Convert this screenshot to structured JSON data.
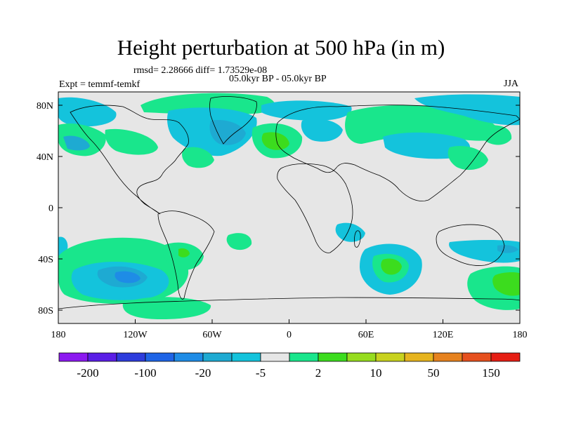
{
  "title": "Height perturbation at 500 hPa (in m)",
  "stats": "rmsd= 2.28666 diff= 1.73529e-08",
  "period": "05.0kyr BP - 05.0kyr BP",
  "expt": "Expt = temmf-temkf",
  "season": "JJA",
  "axes": {
    "lon_labels": [
      "180",
      "120W",
      "60W",
      "0",
      "60E",
      "120E",
      "180"
    ],
    "lat_labels": [
      "80N",
      "40N",
      "0",
      "40S",
      "80S"
    ]
  },
  "colorbar": {
    "colors": [
      "#8c19f0",
      "#5a1ee6",
      "#2d3cdc",
      "#1e64e6",
      "#1e8ce6",
      "#1eaad2",
      "#14c3dc",
      "#e6e6e6",
      "#19e68c",
      "#3cdc1e",
      "#96dc1e",
      "#c8d21e",
      "#e6b41e",
      "#e6821e",
      "#e6501e",
      "#e61e14"
    ],
    "labels": [
      "-200",
      "-100",
      "-20",
      "-5",
      "2",
      "10",
      "50",
      "150"
    ]
  },
  "colors": {
    "ocean": "#e6e6e6",
    "positive": "#19e68c",
    "positive_strong": "#3cdc1e",
    "negative": "#14c3dc",
    "negative_strong": "#1eaad2",
    "negative_stronger": "#1e8ce6"
  }
}
